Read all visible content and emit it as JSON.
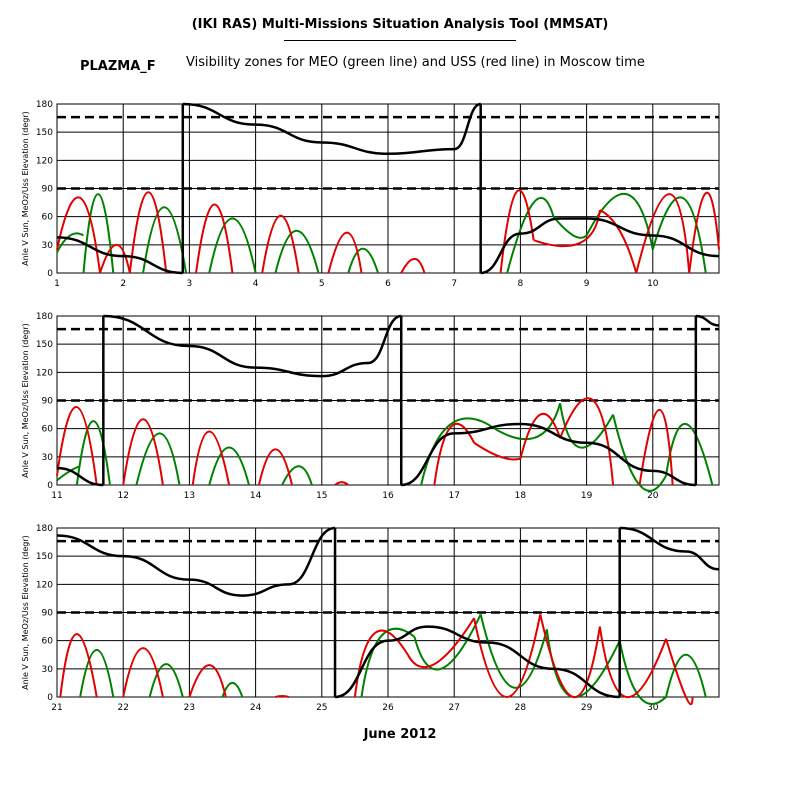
{
  "header": {
    "title": "(IKI RAS) Multi-Missions Situation Analysis Tool (MMSAT)",
    "satellite": "PLAZMA_F",
    "subtitle": "Visibility zones for MEO (green line) and USS (red line) in Moscow time"
  },
  "xaxis_title": "June 2012",
  "colors": {
    "meo": "#008000",
    "uss": "#e00000",
    "sun": "#000000",
    "grid": "#000000"
  },
  "chart_data": [
    {
      "type": "line",
      "panel": 1,
      "xlim": [
        1,
        11
      ],
      "ylim": [
        0,
        180
      ],
      "ylabel": "Anle V Sun, MeOz/Uss Elevation (degr)",
      "xticks": [
        1,
        2,
        3,
        4,
        5,
        6,
        7,
        8,
        9,
        10
      ],
      "yticks": [
        0,
        30,
        60,
        90,
        120,
        150,
        180
      ],
      "hlines": [
        {
          "y": 90,
          "style": "dashed"
        },
        {
          "y": 166,
          "style": "dashed"
        }
      ],
      "sun": [
        [
          [
            1,
            38
          ],
          [
            2,
            18
          ],
          [
            2.9,
            0
          ]
        ],
        [
          [
            2.9,
            180
          ]
        ],
        [
          [
            2.9,
            180
          ],
          [
            4,
            158
          ],
          [
            5,
            139
          ],
          [
            6,
            127
          ],
          [
            7,
            132
          ],
          [
            7.4,
            180
          ]
        ],
        [
          [
            7.4,
            180
          ]
        ],
        [
          [
            7.4,
            0
          ],
          [
            8,
            42
          ],
          [
            8.6,
            58
          ],
          [
            9,
            58
          ],
          [
            10,
            40
          ],
          [
            11,
            18
          ]
        ]
      ],
      "meo": [
        [
          1.0,
          22,
          1.2,
          40,
          1.4,
          40
        ],
        [
          1.4,
          0,
          1.62,
          84,
          1.85,
          0
        ],
        [
          2.3,
          0,
          2.62,
          70,
          2.95,
          0
        ],
        [
          3.3,
          0,
          3.65,
          58,
          4.0,
          0
        ],
        [
          4.3,
          0,
          4.62,
          45,
          4.95,
          0
        ],
        [
          5.4,
          0,
          5.62,
          26,
          5.85,
          0
        ],
        [
          7.8,
          0,
          8.2,
          75,
          8.5,
          60
        ],
        [
          8.5,
          60,
          8.8,
          40,
          9.0,
          40
        ],
        [
          9.0,
          40,
          9.6,
          84,
          10.0,
          25
        ],
        [
          10.0,
          25,
          10.45,
          80,
          10.8,
          0
        ]
      ],
      "uss": [
        [
          1.0,
          25,
          1.35,
          80,
          1.65,
          0
        ],
        [
          1.65,
          0,
          1.9,
          30,
          2.1,
          0
        ],
        [
          2.1,
          0,
          2.38,
          86,
          2.65,
          0
        ],
        [
          3.1,
          0,
          3.38,
          73,
          3.65,
          0
        ],
        [
          4.1,
          0,
          4.38,
          61,
          4.65,
          0
        ],
        [
          5.1,
          0,
          5.38,
          43,
          5.6,
          0
        ],
        [
          6.2,
          0,
          6.4,
          15,
          6.55,
          0
        ],
        [
          7.7,
          0,
          7.95,
          87,
          8.2,
          35
        ],
        [
          8.2,
          35,
          8.9,
          32,
          9.2,
          67
        ],
        [
          9.2,
          67,
          9.5,
          45,
          9.75,
          0
        ],
        [
          9.75,
          0,
          10.25,
          84,
          10.55,
          0
        ],
        [
          10.55,
          0,
          10.8,
          85,
          11.0,
          25
        ]
      ]
    },
    {
      "type": "line",
      "panel": 2,
      "xlim": [
        11,
        21
      ],
      "ylim": [
        0,
        180
      ],
      "ylabel": "Anle V Sun, MeOz/Uss Elevation (degr)",
      "xticks": [
        11,
        12,
        13,
        14,
        15,
        16,
        17,
        18,
        19,
        20
      ],
      "yticks": [
        0,
        30,
        60,
        90,
        120,
        150,
        180
      ],
      "hlines": [
        {
          "y": 90,
          "style": "dashed"
        },
        {
          "y": 166,
          "style": "dashed"
        }
      ],
      "sun": [
        [
          [
            11,
            18
          ],
          [
            11.7,
            0
          ]
        ],
        [
          [
            11.7,
            180
          ]
        ],
        [
          [
            11.7,
            180
          ],
          [
            13,
            148
          ],
          [
            14,
            125
          ],
          [
            15,
            116
          ],
          [
            15.7,
            130
          ],
          [
            16.2,
            180
          ]
        ],
        [
          [
            16.2,
            180
          ]
        ],
        [
          [
            16.2,
            0
          ],
          [
            17,
            55
          ],
          [
            18,
            65
          ],
          [
            19,
            45
          ],
          [
            20,
            15
          ],
          [
            20.65,
            0
          ]
        ],
        [
          [
            20.65,
            180
          ]
        ],
        [
          [
            20.65,
            180
          ],
          [
            21,
            170
          ]
        ]
      ],
      "meo": [
        [
          11.0,
          5,
          11.2,
          15,
          11.35,
          20
        ],
        [
          11.3,
          0,
          11.55,
          68,
          11.8,
          0
        ],
        [
          12.2,
          0,
          12.55,
          55,
          12.85,
          0
        ],
        [
          13.3,
          0,
          13.6,
          40,
          13.9,
          0
        ],
        [
          14.4,
          0,
          14.65,
          20,
          14.85,
          0
        ],
        [
          16.5,
          0,
          16.9,
          62,
          17.5,
          65
        ],
        [
          17.5,
          65,
          18.2,
          50,
          18.6,
          87
        ],
        [
          18.6,
          87,
          18.9,
          40,
          19.4,
          75
        ],
        [
          19.4,
          75,
          19.8,
          0,
          20.2,
          10
        ],
        [
          20.2,
          10,
          20.5,
          65,
          20.9,
          0
        ]
      ],
      "uss": [
        [
          11.0,
          10,
          11.3,
          83,
          11.6,
          0
        ],
        [
          12.0,
          0,
          12.3,
          70,
          12.6,
          0
        ],
        [
          13.05,
          0,
          13.3,
          57,
          13.6,
          0
        ],
        [
          14.05,
          0,
          14.3,
          38,
          14.55,
          0
        ],
        [
          15.2,
          0,
          15.3,
          3,
          15.4,
          0
        ],
        [
          16.7,
          0,
          16.95,
          62,
          17.3,
          45
        ],
        [
          17.3,
          45,
          17.7,
          30,
          18.0,
          28
        ],
        [
          18.0,
          28,
          18.3,
          75,
          18.6,
          50
        ],
        [
          18.6,
          50,
          19.1,
          90,
          19.4,
          0
        ],
        [
          19.8,
          0,
          20.1,
          80,
          20.3,
          0
        ]
      ]
    },
    {
      "type": "line",
      "panel": 3,
      "xlim": [
        21,
        31
      ],
      "ylim": [
        0,
        180
      ],
      "ylabel": "Anle V Sun, MeOz/Uss Elevation (degr)",
      "xticks": [
        21,
        22,
        23,
        24,
        25,
        26,
        27,
        28,
        29,
        30
      ],
      "yticks": [
        0,
        30,
        60,
        90,
        120,
        150,
        180
      ],
      "hlines": [
        {
          "y": 90,
          "style": "dashed"
        },
        {
          "y": 166,
          "style": "dashed"
        }
      ],
      "sun": [
        [
          [
            21,
            172
          ],
          [
            22,
            150
          ],
          [
            23,
            125
          ],
          [
            23.8,
            108
          ],
          [
            24.5,
            120
          ],
          [
            25.2,
            180
          ]
        ],
        [
          [
            25.2,
            180
          ]
        ],
        [
          [
            25.2,
            0
          ],
          [
            26,
            60
          ],
          [
            26.6,
            75
          ],
          [
            27.5,
            58
          ],
          [
            28.5,
            30
          ],
          [
            29.5,
            0
          ]
        ],
        [
          [
            29.5,
            180
          ]
        ],
        [
          [
            29.5,
            180
          ],
          [
            30.5,
            155
          ],
          [
            31,
            136
          ]
        ]
      ],
      "meo": [
        [
          21.35,
          0,
          21.6,
          50,
          21.85,
          0
        ],
        [
          22.4,
          0,
          22.65,
          35,
          22.9,
          0
        ],
        [
          23.5,
          0,
          23.65,
          15,
          23.8,
          0
        ],
        [
          25.6,
          0,
          25.9,
          65,
          26.4,
          64
        ],
        [
          26.4,
          64,
          26.8,
          30,
          27.4,
          88
        ],
        [
          27.4,
          88,
          27.9,
          10,
          28.4,
          72
        ],
        [
          28.4,
          72,
          28.8,
          0,
          29.5,
          60
        ],
        [
          29.5,
          60,
          29.8,
          0,
          30.2,
          0
        ],
        [
          30.2,
          0,
          30.5,
          45,
          30.8,
          0
        ]
      ],
      "uss": [
        [
          21.05,
          0,
          21.3,
          67,
          21.6,
          0
        ],
        [
          22.0,
          0,
          22.3,
          52,
          22.6,
          0
        ],
        [
          23.0,
          0,
          23.3,
          34,
          23.55,
          0
        ],
        [
          24.3,
          0,
          24.4,
          1,
          24.5,
          0
        ],
        [
          25.5,
          0,
          25.8,
          68,
          26.3,
          45
        ],
        [
          26.3,
          45,
          26.7,
          35,
          27.3,
          84
        ],
        [
          27.3,
          84,
          27.8,
          0,
          28.3,
          88
        ],
        [
          28.3,
          88,
          28.8,
          0,
          29.2,
          75
        ],
        [
          29.2,
          75,
          29.6,
          0,
          30.2,
          62
        ],
        [
          30.2,
          62,
          30.5,
          0,
          30.6,
          0
        ]
      ]
    }
  ]
}
